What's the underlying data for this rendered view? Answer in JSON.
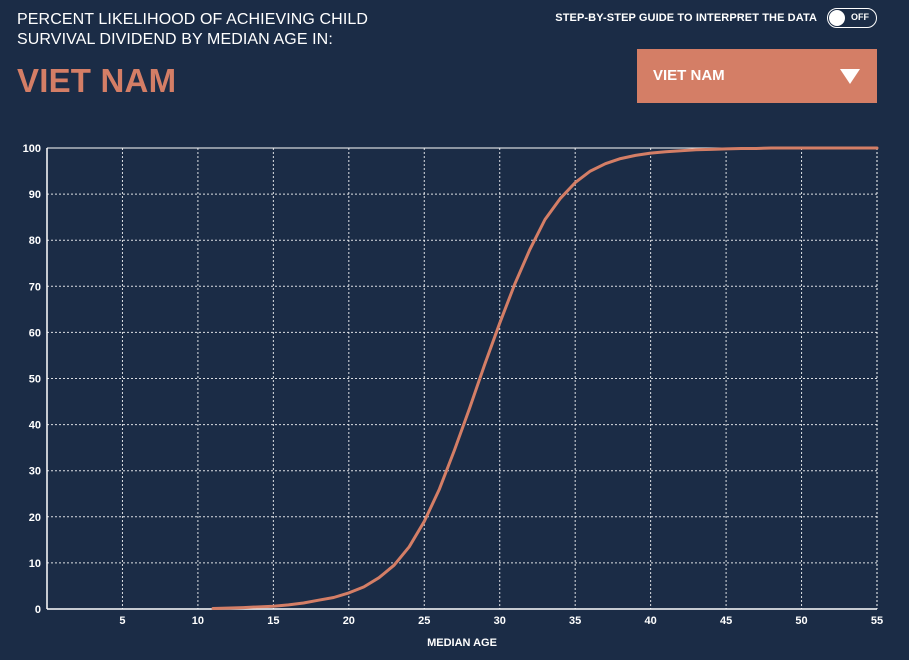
{
  "header": {
    "title_line1": "PERCENT LIKELIHOOD OF ACHIEVING CHILD",
    "title_line2": "SURVIVAL DIVIDEND BY MEDIAN AGE IN:",
    "country": "VIET NAM"
  },
  "guide": {
    "label": "STEP-BY-STEP GUIDE TO INTERPRET THE DATA",
    "toggle_state": "OFF"
  },
  "dropdown": {
    "selected": "VIET NAM"
  },
  "colors": {
    "background": "#1b2c46",
    "accent": "#d47e66",
    "grid": "#ffffff"
  },
  "chart_data": {
    "type": "line",
    "xlabel": "MEDIAN AGE",
    "ylabel": "",
    "xlim": [
      0,
      55
    ],
    "ylim": [
      0,
      100
    ],
    "x_ticks": [
      5,
      10,
      15,
      20,
      25,
      30,
      35,
      40,
      45,
      50,
      55
    ],
    "y_ticks": [
      0,
      10,
      20,
      30,
      40,
      50,
      60,
      70,
      80,
      90,
      100
    ],
    "grid": true,
    "series": [
      {
        "color": "#d47e66",
        "x": [
          11,
          13,
          15,
          16,
          17,
          18,
          19,
          20,
          21,
          22,
          23,
          24,
          25,
          26,
          27,
          28,
          29,
          30,
          31,
          32,
          33,
          34,
          35,
          36,
          37,
          38,
          39,
          40,
          41,
          42,
          43,
          44,
          45,
          46,
          47,
          48,
          50,
          52,
          55
        ],
        "y": [
          0.1,
          0.3,
          0.6,
          0.9,
          1.3,
          1.9,
          2.5,
          3.5,
          4.8,
          6.8,
          9.5,
          13.5,
          19,
          26,
          34.5,
          43.5,
          53,
          62,
          70.5,
          78,
          84.5,
          89,
          92.5,
          95,
          96.6,
          97.7,
          98.4,
          98.9,
          99.2,
          99.4,
          99.6,
          99.7,
          99.8,
          99.9,
          99.9,
          100,
          100,
          100,
          100
        ]
      }
    ]
  }
}
